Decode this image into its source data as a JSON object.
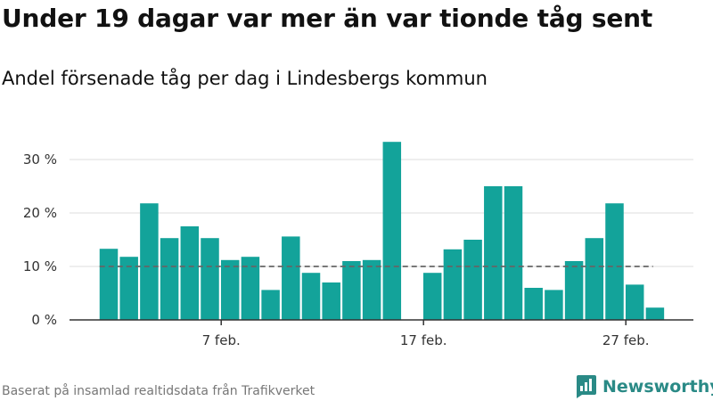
{
  "title": "Under 19 dagar var mer än var tionde tåg sent",
  "subtitle": "Andel försenade tåg per dag i Lindesbergs kommun",
  "footer": "Baserat på insamlad realtidsdata från Trafikverket",
  "brand": "Newsworthy",
  "colors": {
    "bar": "#13a39a",
    "brand": "#2a8a86"
  },
  "chart_data": {
    "type": "bar",
    "x": [
      "1 feb.",
      "2 feb.",
      "3 feb.",
      "4 feb.",
      "5 feb.",
      "6 feb.",
      "7 feb.",
      "8 feb.",
      "9 feb.",
      "10 feb.",
      "11 feb.",
      "12 feb.",
      "13 feb.",
      "14 feb.",
      "15 feb.",
      "16 feb.",
      "17 feb.",
      "18 feb.",
      "19 feb.",
      "20 feb.",
      "21 feb.",
      "22 feb.",
      "23 feb.",
      "24 feb.",
      "25 feb.",
      "26 feb.",
      "27 feb.",
      "28 feb."
    ],
    "values": [
      13.3,
      11.8,
      21.8,
      15.3,
      17.5,
      15.3,
      11.2,
      11.8,
      5.6,
      15.6,
      8.8,
      7.0,
      11.0,
      11.2,
      33.3,
      null,
      8.8,
      13.2,
      15.0,
      25.0,
      25.0,
      6.0,
      5.6,
      11.0,
      15.3,
      21.8,
      6.6,
      2.3
    ],
    "reference_line": 10,
    "xticks": [
      "7 feb.",
      "17 feb.",
      "27 feb."
    ],
    "yticks": [
      "0 %",
      "10 %",
      "20 %",
      "30 %"
    ],
    "ylim": [
      0,
      35
    ],
    "grid": true
  }
}
